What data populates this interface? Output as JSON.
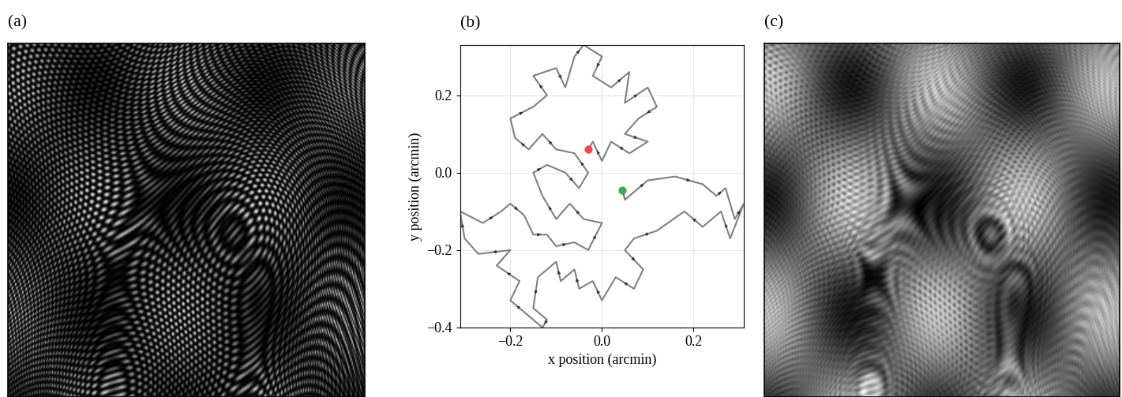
{
  "chart_data": [
    {
      "type": "image",
      "title": "(a)",
      "tick_labels": false
    },
    {
      "type": "line",
      "title": "(b)",
      "x_label": "x position (arcmin)",
      "y_label": "y position (arcmin)",
      "x": [
        0.045,
        0.05,
        0.08,
        0.1,
        0.16,
        0.22,
        0.25,
        0.27,
        0.29,
        0.31,
        0.28,
        0.26,
        0.22,
        0.18,
        0.12,
        0.07,
        0.05,
        0.09,
        0.07,
        0.03,
        0.0,
        -0.02,
        -0.05,
        -0.06,
        -0.09,
        -0.1,
        -0.14,
        -0.15,
        -0.12,
        -0.13,
        -0.17,
        -0.2,
        -0.18,
        -0.23,
        -0.2,
        -0.27,
        -0.3,
        -0.31,
        -0.26,
        -0.22,
        -0.2,
        -0.17,
        -0.15,
        -0.12,
        -0.1,
        -0.06,
        -0.03,
        0.0,
        -0.04,
        -0.07,
        -0.1,
        -0.13,
        -0.15,
        -0.12,
        -0.08,
        -0.05,
        -0.03,
        -0.06,
        -0.1,
        -0.13,
        -0.16,
        -0.19,
        -0.2,
        -0.15,
        -0.12,
        -0.15,
        -0.1,
        -0.08,
        -0.06,
        -0.04,
        0.0,
        -0.02,
        0.02,
        0.06,
        0.05,
        0.1,
        0.12,
        0.08,
        0.05,
        0.1,
        0.06,
        0.02,
        0.0,
        -0.02,
        -0.03
      ],
      "y": [
        -0.045,
        -0.07,
        -0.04,
        -0.02,
        -0.01,
        -0.03,
        -0.06,
        -0.04,
        -0.12,
        -0.08,
        -0.17,
        -0.1,
        -0.14,
        -0.1,
        -0.15,
        -0.17,
        -0.2,
        -0.25,
        -0.3,
        -0.27,
        -0.33,
        -0.28,
        -0.3,
        -0.25,
        -0.28,
        -0.23,
        -0.27,
        -0.35,
        -0.38,
        -0.4,
        -0.36,
        -0.33,
        -0.28,
        -0.24,
        -0.2,
        -0.21,
        -0.17,
        -0.1,
        -0.13,
        -0.1,
        -0.08,
        -0.11,
        -0.16,
        -0.16,
        -0.19,
        -0.18,
        -0.2,
        -0.13,
        -0.12,
        -0.08,
        -0.12,
        -0.06,
        0.0,
        0.02,
        0.0,
        -0.04,
        0.0,
        0.05,
        0.06,
        0.1,
        0.06,
        0.09,
        0.14,
        0.17,
        0.2,
        0.25,
        0.27,
        0.22,
        0.3,
        0.33,
        0.3,
        0.25,
        0.22,
        0.26,
        0.18,
        0.22,
        0.17,
        0.14,
        0.1,
        0.08,
        0.05,
        0.08,
        0.03,
        0.08,
        0.06
      ],
      "color": "#808080",
      "points": [
        {
          "x": 0.045,
          "y": -0.045,
          "color": "#3fae49"
        },
        {
          "x": -0.03,
          "y": 0.06,
          "color": "#f0484a"
        }
      ],
      "xlim": [
        -0.31,
        0.31
      ],
      "ylim": [
        -0.4,
        0.33
      ],
      "xticks": [
        {
          "value": -0.2,
          "label": "−0.2"
        },
        0.0,
        0.2
      ],
      "yticks": [
        {
          "value": -0.4,
          "label": "−0.4"
        },
        {
          "value": -0.2,
          "label": "−0.2"
        },
        0.0,
        0.2
      ],
      "grid": true
    },
    {
      "type": "image",
      "title": "(c)",
      "tick_labels": false
    }
  ]
}
